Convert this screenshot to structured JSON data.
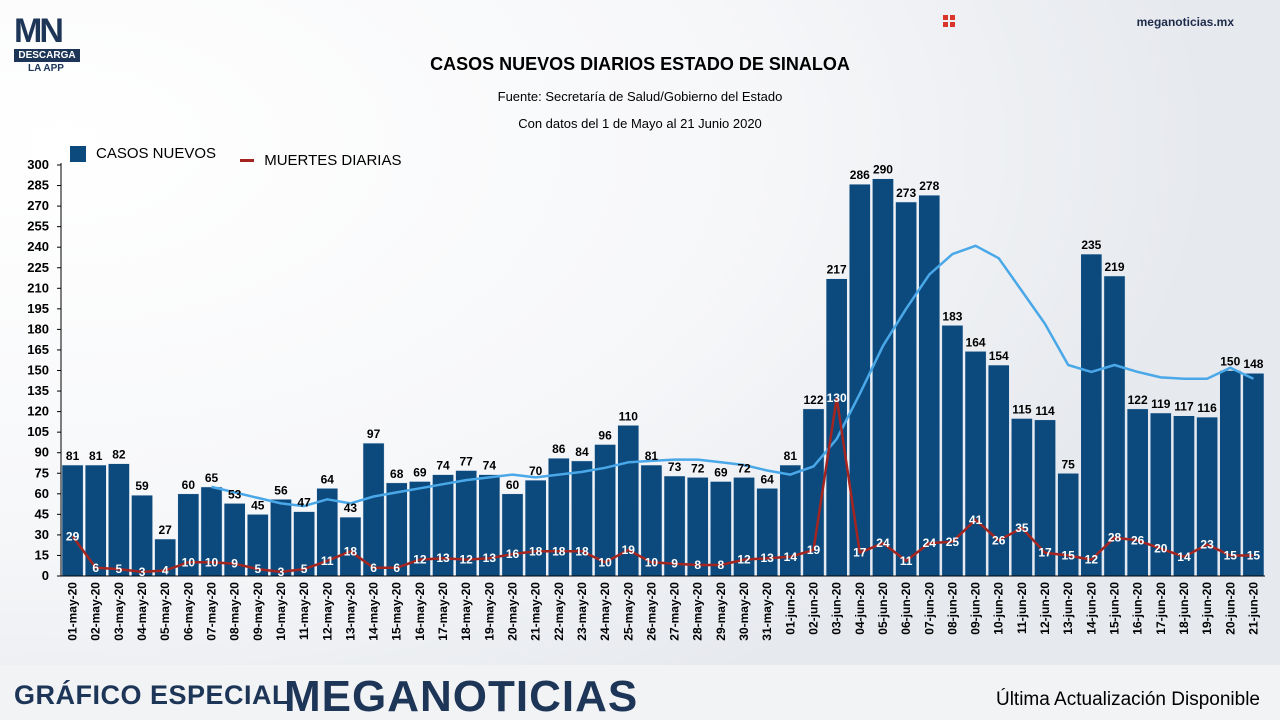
{
  "header": {
    "logo_text": "MN",
    "logo_band": "DESCARGA",
    "logo_sub": "LA APP",
    "site": "meganoticias.mx",
    "site_icon": "grid-icon"
  },
  "footer": {
    "left": "GRÁFICO ESPECIAL",
    "brand": "MEGANOTICIAS",
    "right": "Última Actualización Disponible"
  },
  "colors": {
    "bar": "#0c4a7e",
    "deaths": "#a42520",
    "average": "#4aa8e8"
  },
  "chart_data": {
    "type": "bar",
    "title": "CASOS NUEVOS DIARIOS ESTADO DE SINALOA",
    "subtitle": "Fuente: Secretaría de Salud/Gobierno del Estado",
    "subtitle2": "Con datos del 1 de Mayo al 21 Junio 2020",
    "xlabel": "",
    "ylabel": "",
    "ylim": [
      0,
      300
    ],
    "yticks": [
      0,
      15,
      30,
      45,
      60,
      75,
      90,
      105,
      120,
      135,
      150,
      165,
      180,
      195,
      210,
      225,
      240,
      255,
      270,
      285,
      300
    ],
    "grid": false,
    "legend_position": "top-left",
    "categories": [
      "01-may-20",
      "02-may-20",
      "03-may-20",
      "04-may-20",
      "05-may-20",
      "06-may-20",
      "07-may-20",
      "08-may-20",
      "09-may-20",
      "10-may-20",
      "11-may-20",
      "12-may-20",
      "13-may-20",
      "14-may-20",
      "15-may-20",
      "16-may-20",
      "17-may-20",
      "18-may-20",
      "19-may-20",
      "20-may-20",
      "21-may-20",
      "22-may-20",
      "23-may-20",
      "24-may-20",
      "25-may-20",
      "26-may-20",
      "27-may-20",
      "28-may-20",
      "29-may-20",
      "30-may-20",
      "31-may-20",
      "01-jun-20",
      "02-jun-20",
      "03-jun-20",
      "04-jun-20",
      "05-jun-20",
      "06-jun-20",
      "07-jun-20",
      "08-jun-20",
      "09-jun-20",
      "10-jun-20",
      "11-jun-20",
      "12-jun-20",
      "13-jun-20",
      "14-jun-20",
      "15-jun-20",
      "16-jun-20",
      "17-jun-20",
      "18-jun-20",
      "19-jun-20",
      "20-jun-20",
      "21-jun-20"
    ],
    "series": [
      {
        "name": "CASOS NUEVOS",
        "kind": "bar",
        "values": [
          81,
          81,
          82,
          59,
          27,
          60,
          65,
          53,
          45,
          56,
          47,
          64,
          43,
          97,
          68,
          69,
          74,
          77,
          74,
          60,
          70,
          86,
          84,
          96,
          110,
          81,
          73,
          72,
          69,
          72,
          64,
          81,
          122,
          217,
          286,
          290,
          273,
          278,
          183,
          164,
          154,
          115,
          114,
          75,
          235,
          219,
          122,
          119,
          117,
          116,
          150,
          148
        ]
      },
      {
        "name": "MUERTES DIARIAS",
        "kind": "line",
        "values": [
          29,
          6,
          5,
          3,
          4,
          10,
          10,
          9,
          5,
          3,
          5,
          11,
          18,
          6,
          6,
          12,
          13,
          12,
          13,
          16,
          18,
          18,
          18,
          10,
          19,
          10,
          9,
          8,
          8,
          12,
          13,
          14,
          19,
          130,
          17,
          24,
          11,
          24,
          25,
          41,
          26,
          35,
          17,
          15,
          12,
          28,
          26,
          20,
          14,
          23,
          15,
          15
        ]
      },
      {
        "name": "",
        "kind": "line",
        "values": [
          null,
          null,
          null,
          null,
          null,
          null,
          65,
          61,
          57,
          53,
          51,
          56,
          53,
          58,
          61,
          64,
          67,
          70,
          72,
          74,
          72,
          74,
          76,
          79,
          83,
          84,
          85,
          85,
          83,
          81,
          77,
          74,
          80,
          100,
          133,
          168,
          195,
          220,
          235,
          241,
          232,
          208,
          184,
          154,
          149,
          154,
          149,
          145,
          144,
          144,
          152,
          144
        ]
      }
    ]
  }
}
